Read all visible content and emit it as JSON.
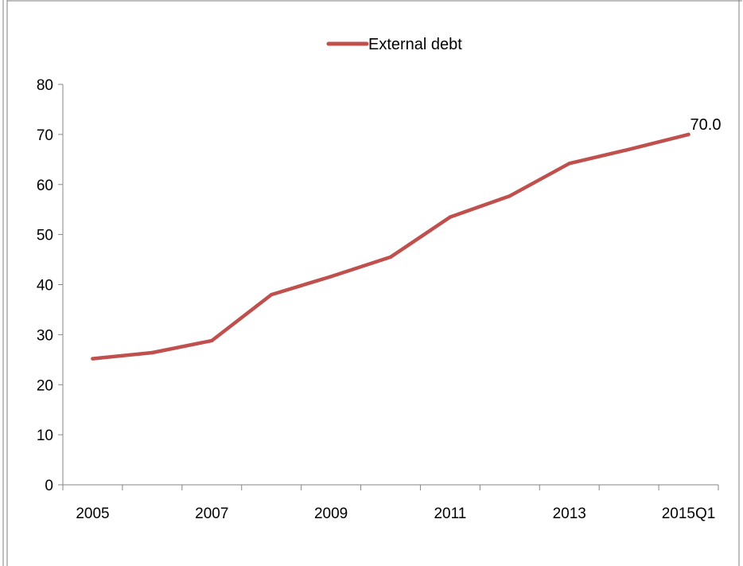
{
  "chart_data": {
    "type": "line",
    "title": "",
    "xlabel": "",
    "ylabel": "",
    "x": [
      "2005",
      "2006",
      "2007",
      "2008",
      "2009",
      "2010",
      "2011",
      "2012",
      "2013",
      "2014",
      "2015Q1"
    ],
    "x_tick_labels": [
      "2005",
      "2007",
      "2009",
      "2011",
      "2013",
      "2015Q1"
    ],
    "ylim": [
      0,
      80
    ],
    "y_ticks": [
      0,
      10,
      20,
      30,
      40,
      50,
      60,
      70,
      80
    ],
    "grid": false,
    "legend_position": "top-center",
    "series": [
      {
        "name": "External debt",
        "color": "#c0504d",
        "values": [
          25.2,
          26.4,
          28.8,
          38.0,
          41.6,
          45.5,
          53.5,
          57.7,
          64.2,
          67.0,
          70.0
        ]
      }
    ],
    "annotations": [
      {
        "text": "70.0",
        "x": "2015Q1",
        "y": 70.0
      }
    ]
  }
}
